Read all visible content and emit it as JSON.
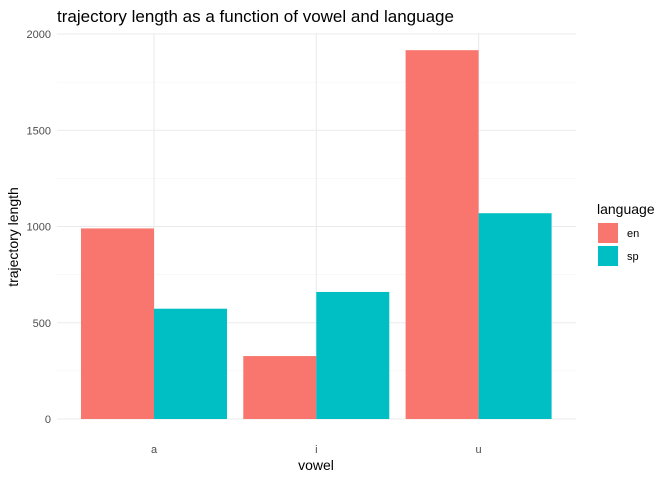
{
  "chart_data": {
    "type": "bar",
    "title": "trajectory length as a function of vowel and language",
    "xlabel": "vowel",
    "ylabel": "trajectory length",
    "categories": [
      "a",
      "i",
      "u"
    ],
    "series": [
      {
        "name": "en",
        "color": "#F8766D",
        "values": [
          990,
          327,
          1916
        ]
      },
      {
        "name": "sp",
        "color": "#00BFC4",
        "values": [
          573,
          660,
          1069
        ]
      }
    ],
    "ylim": [
      0,
      2000
    ],
    "yticks": [
      "0",
      "500",
      "1000",
      "1500",
      "2000"
    ],
    "legend": {
      "title": "language",
      "position": "right"
    },
    "grid": true
  }
}
